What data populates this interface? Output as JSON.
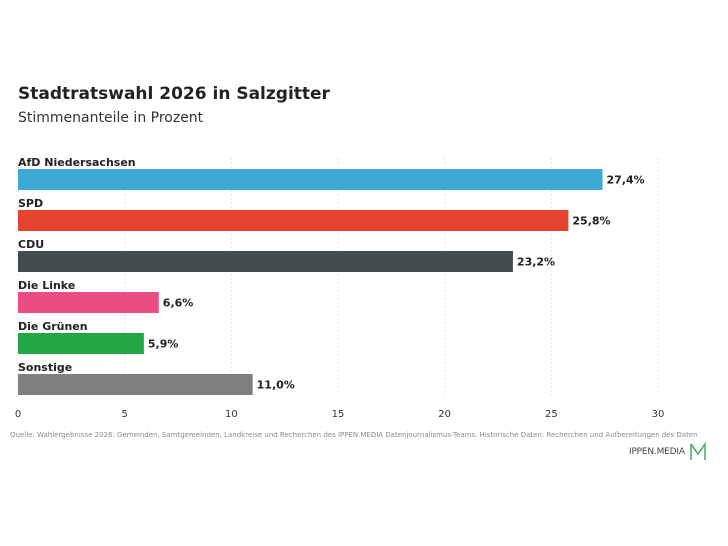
{
  "colors": {
    "afd": "#3daad6",
    "spd": "#e4432d",
    "cdu": "#414d4f",
    "linke": "#eb4f81",
    "gruene": "#22a744",
    "sonstige": "#7f7f7f",
    "grid": "#e4e4e4",
    "logo_green": "#4fae6a"
  },
  "chart_data": {
    "type": "bar",
    "orientation": "horizontal",
    "title": "Stadtratswahl 2026 in Salzgitter",
    "subtitle": "Stimmenanteile in Prozent",
    "categories": [
      "AfD Niedersachsen",
      "SPD",
      "CDU",
      "Die Linke",
      "Die Grünen",
      "Sonstige"
    ],
    "values": [
      27.4,
      25.8,
      23.2,
      6.6,
      5.9,
      11.0
    ],
    "value_labels": [
      "27,4%",
      "25,8%",
      "23,2%",
      "6,6%",
      "5,9%",
      "11,0%"
    ],
    "bar_colors": [
      "#3daad6",
      "#e4432d",
      "#414d4f",
      "#eb4f81",
      "#22a744",
      "#7f7f7f"
    ],
    "xlim": [
      0,
      30
    ],
    "xticks": [
      0,
      5,
      10,
      15,
      20,
      25,
      30
    ],
    "xtick_labels": [
      "0",
      "5",
      "10",
      "15",
      "20",
      "25",
      "30"
    ],
    "grid": "vertical dotted"
  },
  "footer": {
    "source": "Quelle: Wahlergebnisse 2026: Gemeinden, Samtgemeinden, Landkreise und Recherchen des IPPEN.MEDIA Datenjournalismus-Teams. Historische Daten: Recherchen und Aufbereitungen des Daten",
    "logo_text": "IPPEN.MEDIA"
  }
}
